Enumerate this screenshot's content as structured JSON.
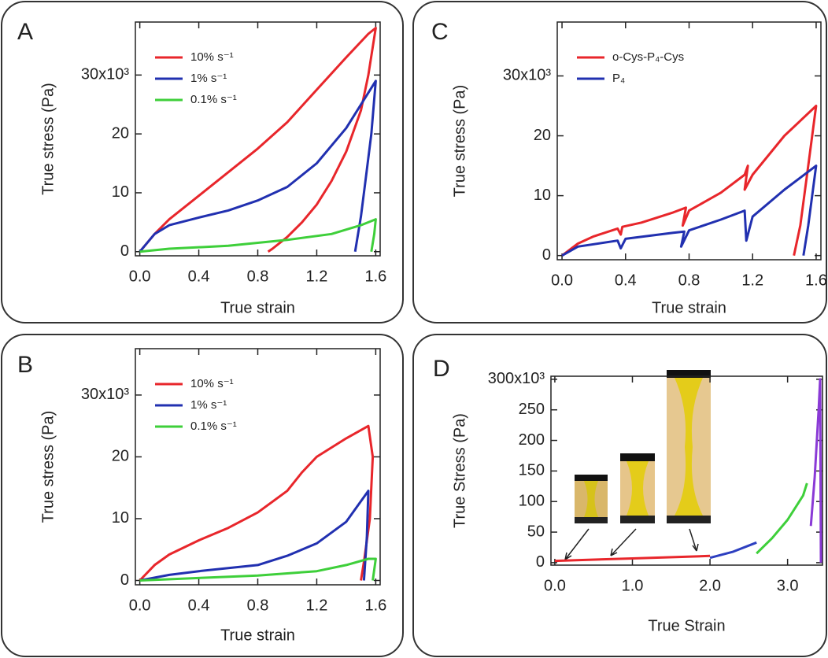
{
  "chart_data": [
    {
      "type": "line",
      "label": "A",
      "xlabel": "True strain",
      "ylabel": "True stress (Pa)",
      "legend": "upper left",
      "xlim": [
        -0.03,
        1.63
      ],
      "ylim": [
        -700,
        39000
      ],
      "xticks": [
        {
          "value": 0,
          "label": "0.0"
        },
        0.4,
        0.8,
        1.2,
        1.6
      ],
      "yticks": [
        0,
        {
          "value": 10000,
          "label": "10"
        },
        {
          "value": 20000,
          "label": "20"
        },
        {
          "value": 30000,
          "label": "30x10³"
        }
      ],
      "series": [
        {
          "name": "10% s⁻¹",
          "color": "#e8262b",
          "x": [
            0,
            0.1,
            0.2,
            0.4,
            0.6,
            0.8,
            1.0,
            1.2,
            1.4,
            1.55,
            1.6,
            1.55,
            1.5,
            1.4,
            1.3,
            1.2,
            1.1,
            1.0,
            0.9,
            0.87
          ],
          "values": [
            0,
            3000,
            5500,
            9500,
            13500,
            17500,
            22000,
            27500,
            33000,
            37000,
            38000,
            30000,
            24000,
            17000,
            12000,
            8000,
            5000,
            2500,
            500,
            0
          ]
        },
        {
          "name": "1% s⁻¹",
          "color": "#2130b0",
          "x": [
            0,
            0.1,
            0.2,
            0.4,
            0.6,
            0.8,
            1.0,
            1.2,
            1.4,
            1.55,
            1.6,
            1.57,
            1.53,
            1.5,
            1.46
          ],
          "values": [
            0,
            3000,
            4500,
            5800,
            7000,
            8700,
            11000,
            15000,
            21000,
            27000,
            29000,
            20000,
            12000,
            6000,
            0
          ]
        },
        {
          "name": "0.1% s⁻¹",
          "color": "#3ecf3a",
          "x": [
            0,
            0.2,
            0.6,
            1.0,
            1.3,
            1.5,
            1.6,
            1.59,
            1.57
          ],
          "values": [
            0,
            500,
            1000,
            2000,
            3000,
            4500,
            5500,
            3000,
            0
          ]
        }
      ]
    },
    {
      "type": "line",
      "label": "B",
      "xlabel": "True strain",
      "ylabel": "True stress (Pa)",
      "legend": "upper left",
      "xlim": [
        -0.03,
        1.63
      ],
      "ylim": [
        -700,
        37500
      ],
      "xticks": [
        {
          "value": 0,
          "label": "0.0"
        },
        0.4,
        0.8,
        1.2,
        1.6
      ],
      "yticks": [
        0,
        {
          "value": 10000,
          "label": "10"
        },
        {
          "value": 20000,
          "label": "20"
        },
        {
          "value": 30000,
          "label": "30x10³"
        }
      ],
      "series": [
        {
          "name": "10% s⁻¹",
          "color": "#e8262b",
          "x": [
            0,
            0.1,
            0.2,
            0.4,
            0.6,
            0.8,
            1.0,
            1.1,
            1.2,
            1.4,
            1.55,
            1.58,
            1.56,
            1.52,
            1.5
          ],
          "values": [
            0,
            2500,
            4200,
            6500,
            8500,
            11000,
            14500,
            17500,
            20000,
            23000,
            25000,
            20000,
            10000,
            3000,
            0
          ]
        },
        {
          "name": "1% s⁻¹",
          "color": "#2130b0",
          "x": [
            0,
            0.2,
            0.4,
            0.8,
            1.0,
            1.2,
            1.4,
            1.55,
            1.54,
            1.52
          ],
          "values": [
            0,
            900,
            1500,
            2500,
            4000,
            6000,
            9500,
            14500,
            7000,
            0
          ]
        },
        {
          "name": "0.1% s⁻¹",
          "color": "#3ecf3a",
          "x": [
            0,
            0.8,
            1.2,
            1.4,
            1.55,
            1.6,
            1.58
          ],
          "values": [
            0,
            800,
            1500,
            2500,
            3500,
            3500,
            0
          ]
        }
      ]
    },
    {
      "type": "line",
      "label": "C",
      "xlabel": "True strain",
      "ylabel": "True stress (Pa)",
      "legend": "upper left",
      "xlim": [
        -0.03,
        1.63
      ],
      "ylim": [
        -700,
        39000
      ],
      "xticks": [
        {
          "value": 0,
          "label": "0.0"
        },
        0.4,
        0.8,
        1.2,
        1.6
      ],
      "yticks": [
        0,
        {
          "value": 10000,
          "label": "10"
        },
        {
          "value": 20000,
          "label": "20"
        },
        {
          "value": 30000,
          "label": "30x10³"
        }
      ],
      "series": [
        {
          "name": "o-Cys-P₄-Cys",
          "color": "#e8262b",
          "x": [
            0,
            0.1,
            0.2,
            0.35,
            0.37,
            0.38,
            0.5,
            0.7,
            0.78,
            0.76,
            0.8,
            1.0,
            1.15,
            1.17,
            1.15,
            1.2,
            1.4,
            1.6,
            1.55,
            1.5,
            1.46
          ],
          "values": [
            0,
            2000,
            3200,
            4500,
            3500,
            4800,
            5500,
            7200,
            8000,
            5000,
            7500,
            10500,
            13500,
            15000,
            11000,
            13500,
            20000,
            25000,
            15000,
            5000,
            0
          ]
        },
        {
          "name": "P₄",
          "color": "#2130b0",
          "x": [
            0,
            0.1,
            0.35,
            0.37,
            0.4,
            0.7,
            0.77,
            0.75,
            0.8,
            1.0,
            1.15,
            1.16,
            1.2,
            1.4,
            1.6,
            1.55,
            1.52
          ],
          "values": [
            0,
            1500,
            2500,
            1200,
            2800,
            3800,
            4000,
            1500,
            4200,
            6000,
            7500,
            2500,
            6500,
            11000,
            15000,
            5000,
            0
          ]
        }
      ]
    },
    {
      "type": "line",
      "label": "D",
      "xlabel": "True Strain",
      "ylabel": "True Stress (Pa)",
      "xlim": [
        -0.05,
        3.45
      ],
      "ylim": [
        -4000,
        305000
      ],
      "xticks": [
        {
          "value": 0,
          "label": "0.0"
        },
        {
          "value": 1,
          "label": "1.0"
        },
        {
          "value": 2,
          "label": "2.0"
        },
        {
          "value": 3,
          "label": "3.0"
        }
      ],
      "yticks": [
        0,
        {
          "value": 50000,
          "label": "50"
        },
        {
          "value": 100000,
          "label": "100"
        },
        {
          "value": 150000,
          "label": "150"
        },
        {
          "value": 200000,
          "label": "200"
        },
        {
          "value": 250000,
          "label": "250"
        },
        {
          "value": 300000,
          "label": "300x10³"
        }
      ],
      "series": [
        {
          "color": "#e8262b",
          "x": [
            0,
            1,
            2
          ],
          "values": [
            3000,
            7000,
            11000
          ]
        },
        {
          "color": "#2d3fc0",
          "x": [
            2,
            2.3,
            2.6
          ],
          "values": [
            8000,
            18000,
            33000
          ]
        },
        {
          "color": "#3ecf3a",
          "x": [
            2.6,
            2.8,
            3,
            3.2,
            3.25
          ],
          "values": [
            15000,
            40000,
            70000,
            110000,
            130000
          ]
        },
        {
          "color": "#8a3ad6",
          "x": [
            3.3,
            3.35,
            3.4,
            3.42,
            3.43
          ],
          "values": [
            60000,
            140000,
            250000,
            300000,
            0
          ]
        }
      ]
    }
  ]
}
